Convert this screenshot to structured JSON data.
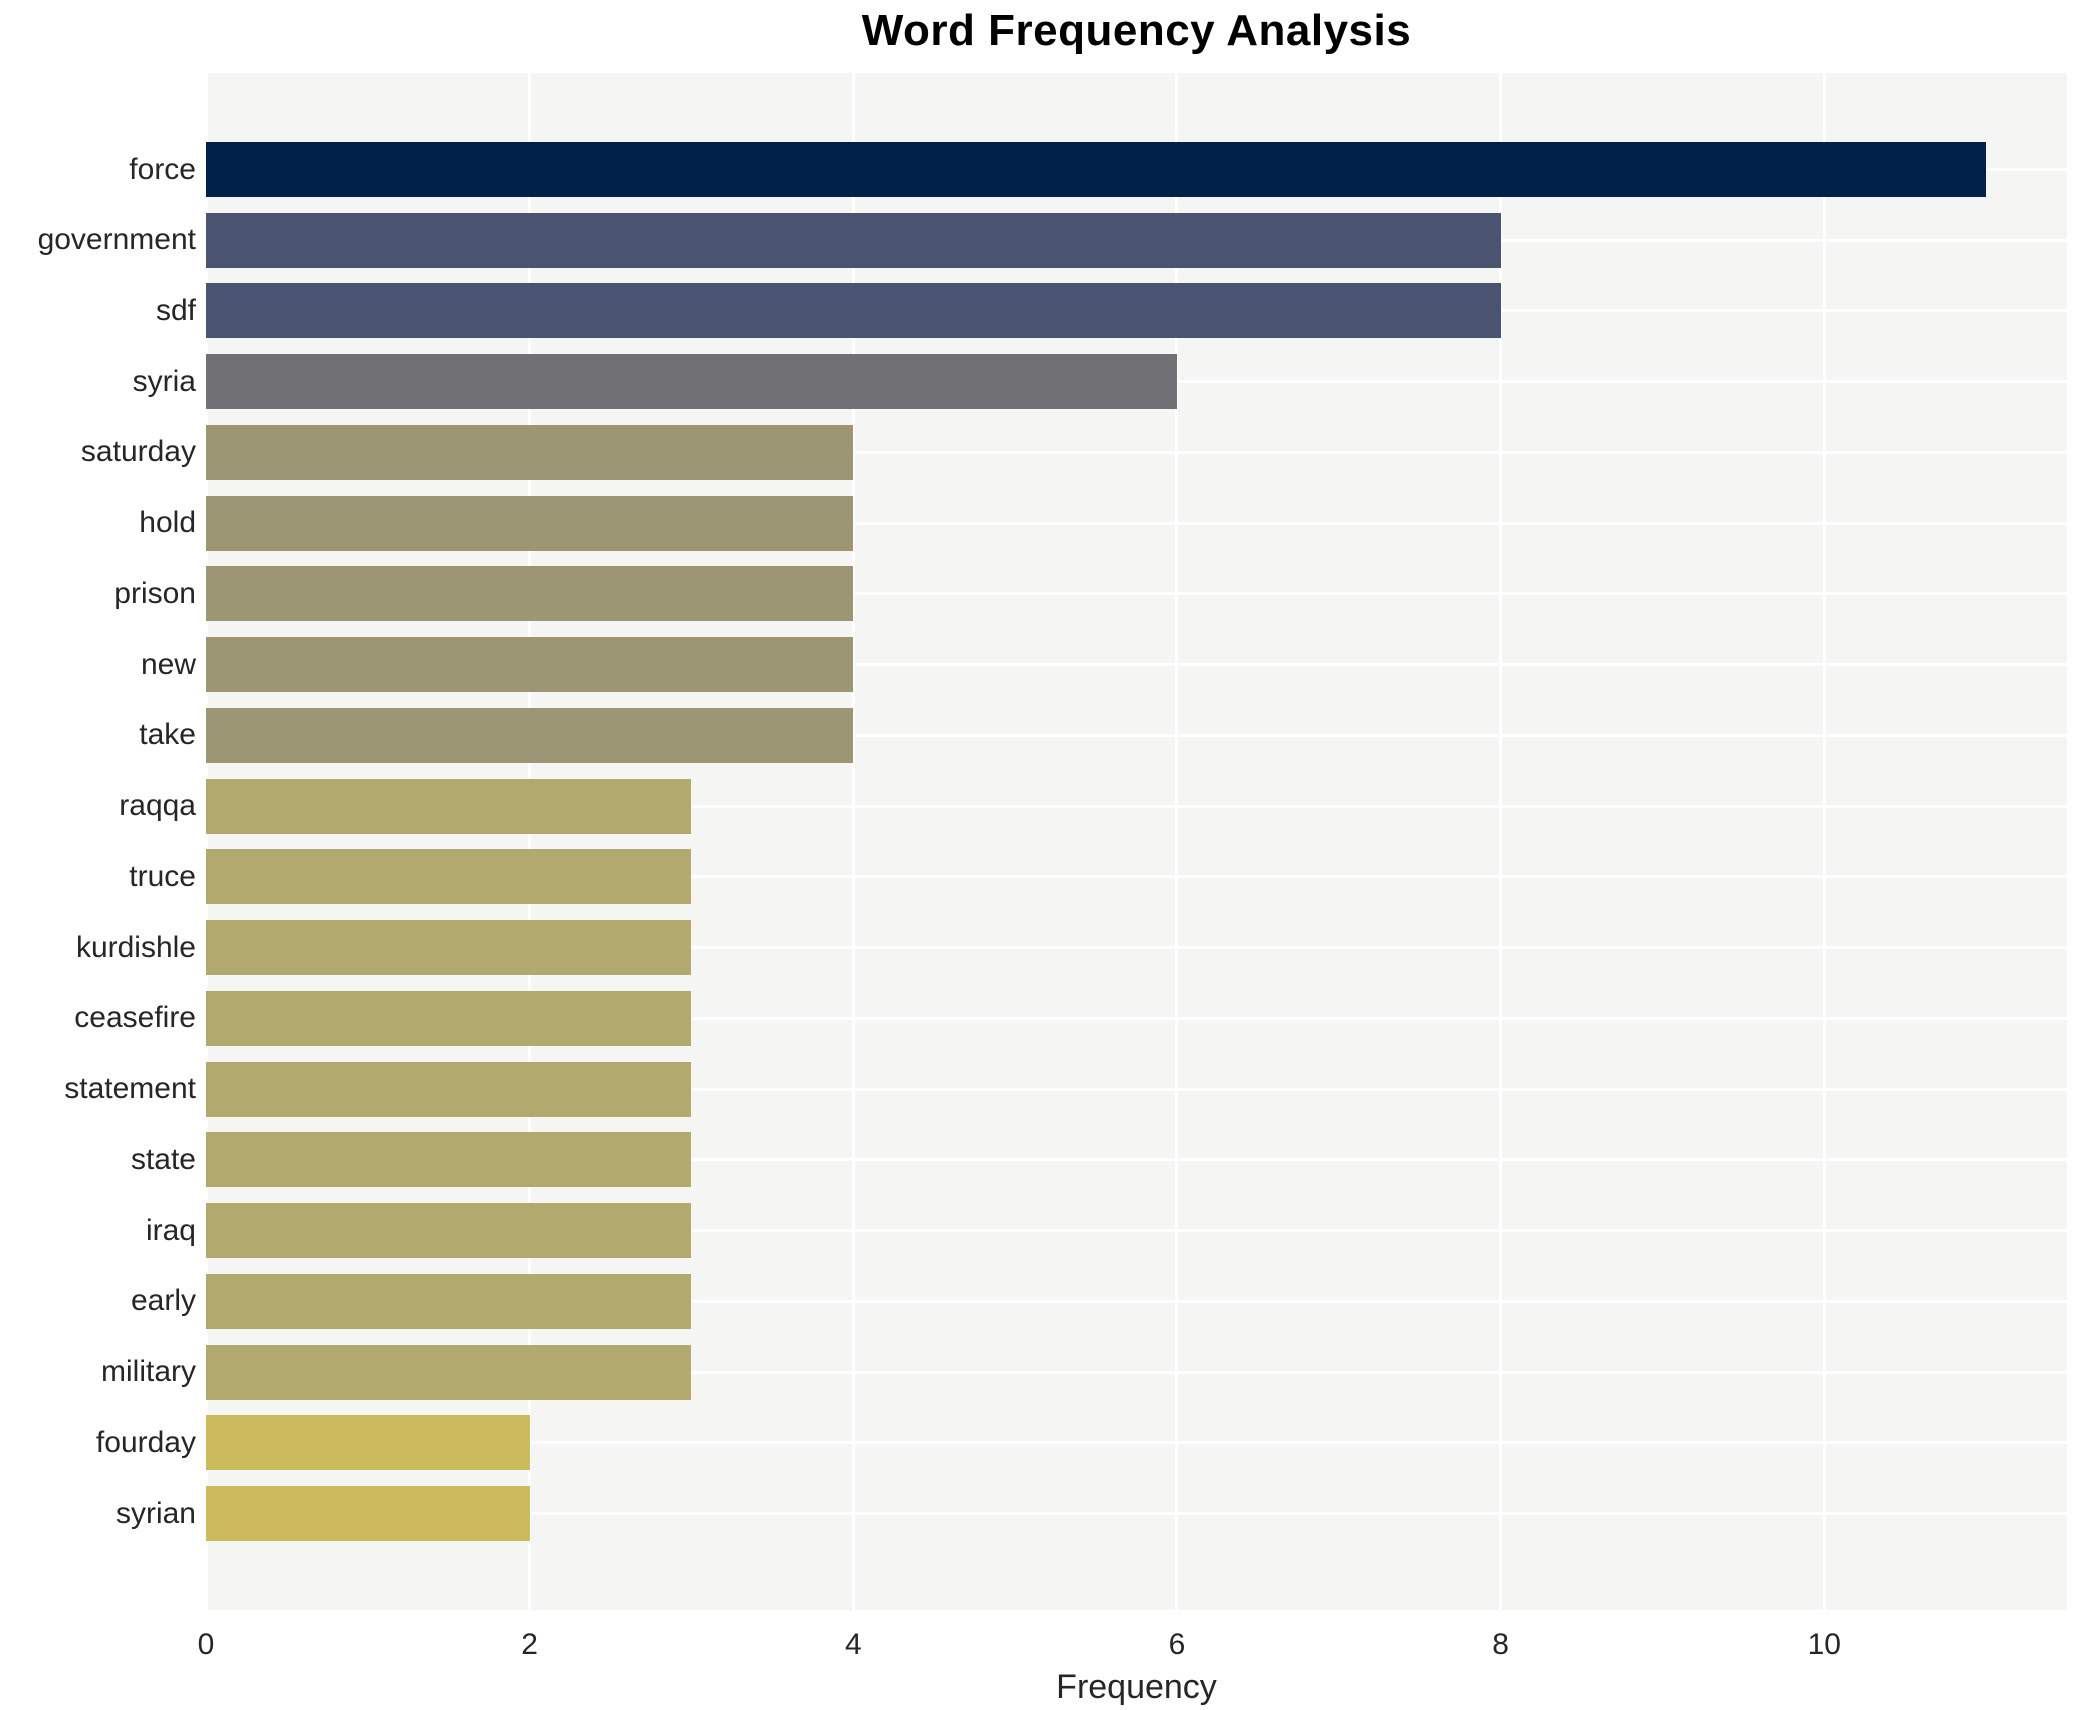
{
  "chart_data": {
    "type": "bar",
    "orientation": "horizontal",
    "title": "Word Frequency Analysis",
    "xlabel": "Frequency",
    "ylabel": "",
    "categories": [
      "force",
      "government",
      "sdf",
      "syria",
      "saturday",
      "hold",
      "prison",
      "new",
      "take",
      "raqqa",
      "truce",
      "kurdishle",
      "ceasefire",
      "statement",
      "state",
      "iraq",
      "early",
      "military",
      "fourday",
      "syrian"
    ],
    "values": [
      11,
      8,
      8,
      6,
      4,
      4,
      4,
      4,
      4,
      3,
      3,
      3,
      3,
      3,
      3,
      3,
      3,
      3,
      2,
      2
    ],
    "bar_colors": [
      "#012149",
      "#4a5470",
      "#4a5470",
      "#717074",
      "#9d9674",
      "#9d9674",
      "#9d9674",
      "#9d9674",
      "#9d9674",
      "#b2a96e",
      "#b2a96e",
      "#b2a96e",
      "#b2a96e",
      "#b2a96e",
      "#b2a96e",
      "#b2a96e",
      "#b2a96e",
      "#b2a96e",
      "#ccbb5e",
      "#ccbb5e"
    ],
    "x_ticks": [
      "0",
      "2",
      "4",
      "6",
      "8",
      "10"
    ],
    "x_tick_values": [
      0,
      2,
      4,
      6,
      8,
      10
    ],
    "xlim": [
      0,
      11.5
    ],
    "grid": true,
    "legend": "none",
    "plot_background": "#f5f5f4",
    "gridline_color": "#ffffff",
    "text_color": "#262626",
    "title_color": "#000000"
  }
}
